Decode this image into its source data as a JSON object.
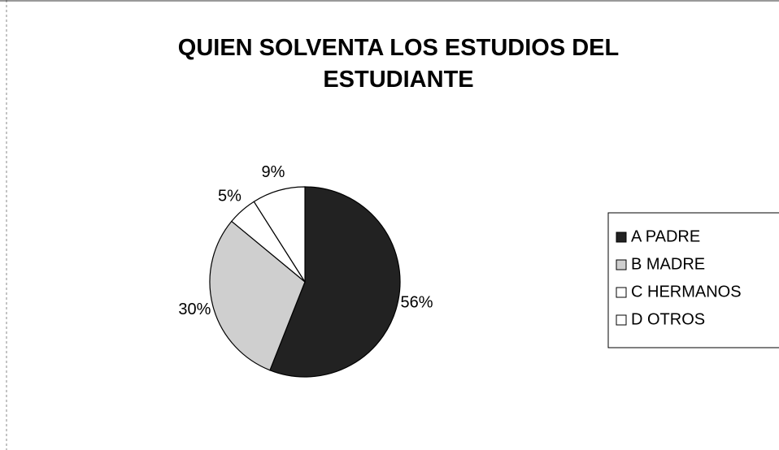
{
  "chart_data": {
    "type": "pie",
    "title": "QUIEN SOLVENTA LOS ESTUDIOS DEL ESTUDIANTE",
    "categories": [
      "A PADRE",
      "B MADRE",
      "C HERMANOS",
      "D OTROS"
    ],
    "values": [
      56,
      30,
      5,
      9
    ],
    "value_labels": [
      "56%",
      "30%",
      "5%",
      "9%"
    ],
    "colors": [
      "#222222",
      "#cfcfcf",
      "#ffffff",
      "#ffffff"
    ],
    "legend": "right"
  }
}
